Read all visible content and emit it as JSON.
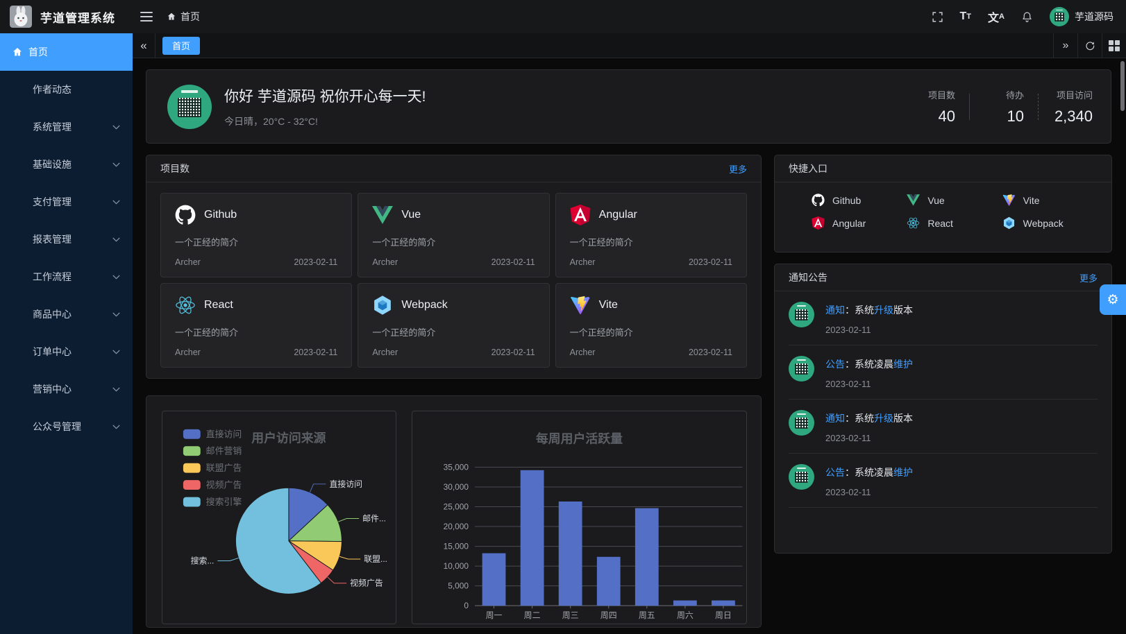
{
  "colors": {
    "accent": "#409eff",
    "sidebar_bg": "#0d1d31",
    "card_bg": "#1b1b1d",
    "avatar_green": "#2fa87f",
    "chart_title": "#5b5f66",
    "axis_label": "#a1a4aa",
    "grid_line": "#4a4b52",
    "axis_line": "#6e7079",
    "pie_label": "#d8dce2",
    "legend_text": "#6d7177"
  },
  "header": {
    "app_title": "芋道管理系统",
    "breadcrumb_home": "首页",
    "username": "芋道源码",
    "icons": [
      "fold",
      "fullscreen",
      "font-size",
      "language",
      "bell"
    ]
  },
  "sidebar": {
    "items": [
      {
        "label": "首页",
        "icon": "home",
        "active": true,
        "arrow": false
      },
      {
        "label": "作者动态",
        "arrow": false
      },
      {
        "label": "系统管理",
        "arrow": true
      },
      {
        "label": "基础设施",
        "arrow": true
      },
      {
        "label": "支付管理",
        "arrow": true
      },
      {
        "label": "报表管理",
        "arrow": true
      },
      {
        "label": "工作流程",
        "arrow": true
      },
      {
        "label": "商品中心",
        "arrow": true
      },
      {
        "label": "订单中心",
        "arrow": true
      },
      {
        "label": "营销中心",
        "arrow": true
      },
      {
        "label": "公众号管理",
        "arrow": true
      }
    ]
  },
  "tabs": {
    "active": "首页"
  },
  "banner": {
    "greeting": "你好 芋道源码 祝你开心每一天!",
    "weather": "今日晴，20°C - 32°C!",
    "stats": [
      {
        "label": "项目数",
        "value": "40"
      },
      {
        "label": "待办",
        "value": "10"
      },
      {
        "label": "项目访问",
        "value": "2,340"
      }
    ]
  },
  "projects": {
    "title": "项目数",
    "more": "更多",
    "items": [
      {
        "name": "Github",
        "icon": "github",
        "desc": "一个正经的简介",
        "author": "Archer",
        "date": "2023-02-11"
      },
      {
        "name": "Vue",
        "icon": "vue",
        "desc": "一个正经的简介",
        "author": "Archer",
        "date": "2023-02-11"
      },
      {
        "name": "Angular",
        "icon": "angular",
        "desc": "一个正经的简介",
        "author": "Archer",
        "date": "2023-02-11"
      },
      {
        "name": "React",
        "icon": "react",
        "desc": "一个正经的简介",
        "author": "Archer",
        "date": "2023-02-11"
      },
      {
        "name": "Webpack",
        "icon": "webpack",
        "desc": "一个正经的简介",
        "author": "Archer",
        "date": "2023-02-11"
      },
      {
        "name": "Vite",
        "icon": "vite",
        "desc": "一个正经的简介",
        "author": "Archer",
        "date": "2023-02-11"
      }
    ]
  },
  "shortcuts": {
    "title": "快捷入口",
    "items": [
      {
        "name": "Github",
        "icon": "github"
      },
      {
        "name": "Vue",
        "icon": "vue"
      },
      {
        "name": "Vite",
        "icon": "vite"
      },
      {
        "name": "Angular",
        "icon": "angular"
      },
      {
        "name": "React",
        "icon": "react"
      },
      {
        "name": "Webpack",
        "icon": "webpack"
      }
    ]
  },
  "notices": {
    "title": "通知公告",
    "more": "更多",
    "items": [
      {
        "parts": [
          {
            "text": "通知",
            "highlight": true
          },
          {
            "text": "：系统"
          },
          {
            "text": "升级",
            "highlight": true
          },
          {
            "text": "版本"
          }
        ],
        "date": "2023-02-11"
      },
      {
        "parts": [
          {
            "text": "公告",
            "highlight": true
          },
          {
            "text": "：系统凌晨"
          },
          {
            "text": "维护",
            "highlight": true
          }
        ],
        "date": "2023-02-11"
      },
      {
        "parts": [
          {
            "text": "通知",
            "highlight": true
          },
          {
            "text": "：系统"
          },
          {
            "text": "升级",
            "highlight": true
          },
          {
            "text": "版本"
          }
        ],
        "date": "2023-02-11"
      },
      {
        "parts": [
          {
            "text": "公告",
            "highlight": true
          },
          {
            "text": "：系统凌晨"
          },
          {
            "text": "维护",
            "highlight": true
          }
        ],
        "date": "2023-02-11"
      }
    ]
  },
  "chart_data": [
    {
      "type": "pie",
      "title": "用户访问来源",
      "legend_position": "left",
      "legend": [
        "直接访问",
        "邮件营销",
        "联盟广告",
        "视频广告",
        "搜索引擎"
      ],
      "series": [
        {
          "name": "直接访问",
          "value": 335
        },
        {
          "name": "邮件营销",
          "value": 310
        },
        {
          "name": "联盟广告",
          "value": 234
        },
        {
          "name": "视频广告",
          "value": 135
        },
        {
          "name": "搜索引擎",
          "value": 1548
        }
      ],
      "labels_display": [
        "直接访问",
        "邮件...",
        "联盟...",
        "视频广告",
        "搜索..."
      ],
      "colors": [
        "#5470c6",
        "#91cc75",
        "#fac858",
        "#ee6666",
        "#73c0de"
      ],
      "start_angle": 90
    },
    {
      "type": "bar",
      "title": "每周用户活跃量",
      "categories": [
        "周一",
        "周二",
        "周三",
        "周四",
        "周五",
        "周六",
        "周日"
      ],
      "values": [
        13253,
        34235,
        26321,
        12340,
        24643,
        1322,
        1324
      ],
      "xlabel": "",
      "ylabel": "",
      "ylim": [
        0,
        35000
      ],
      "ytick_step": 5000,
      "bar_color": "#5470c6",
      "grid": true,
      "legend_position": "none"
    }
  ]
}
